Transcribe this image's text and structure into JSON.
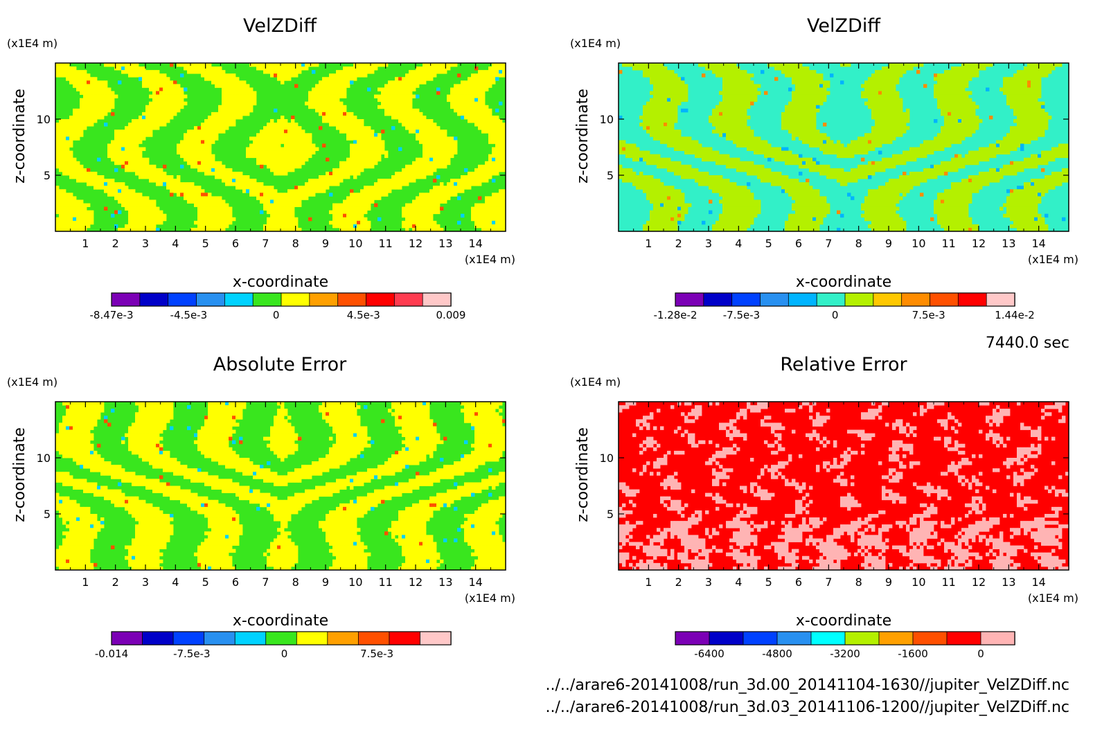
{
  "time_label": "7440.0 sec",
  "files": [
    "../../arare6-20141008/run_3d.00_20141104-1630//jupiter_VelZDiff.nc",
    "../../arare6-20141008/run_3d.03_20141106-1200//jupiter_VelZDiff.nc"
  ],
  "chart_data": [
    {
      "type": "heatmap",
      "title": "VelZDiff",
      "xlabel": "x-coordinate",
      "ylabel": "z-coordinate",
      "x_unit": "(x1E4 m)",
      "y_unit": "(x1E4 m)",
      "xlim": [
        0,
        15
      ],
      "ylim": [
        0,
        15
      ],
      "x_ticks": [
        1,
        2,
        3,
        4,
        5,
        6,
        7,
        8,
        9,
        10,
        11,
        12,
        13,
        14
      ],
      "y_ticks": [
        5,
        10
      ],
      "dominant_levels": [
        5,
        6
      ],
      "colorbar": {
        "colors": [
          "#7b00b5",
          "#0000c8",
          "#0041ff",
          "#2890f0",
          "#00d2ff",
          "#39e61e",
          "#ffff00",
          "#ffa000",
          "#ff5000",
          "#ff0000",
          "#ff3c50",
          "#ffc8c8"
        ],
        "labels": [
          "-8.47e-3",
          "-4.5e-3",
          "0",
          "4.5e-3",
          "0.009"
        ],
        "range": [
          -0.00847,
          0.009
        ],
        "label_values": [
          -0.00847,
          -0.0045,
          0,
          0.0045,
          0.009
        ]
      }
    },
    {
      "type": "heatmap",
      "title": "VelZDiff",
      "xlabel": "x-coordinate",
      "ylabel": "z-coordinate",
      "x_unit": "(x1E4 m)",
      "y_unit": "(x1E4 m)",
      "xlim": [
        0,
        15
      ],
      "ylim": [
        0,
        15
      ],
      "x_ticks": [
        1,
        2,
        3,
        4,
        5,
        6,
        7,
        8,
        9,
        10,
        11,
        12,
        13,
        14
      ],
      "y_ticks": [
        5,
        10
      ],
      "dominant_levels": [
        5,
        6
      ],
      "colorbar": {
        "colors": [
          "#7b00b5",
          "#0000c8",
          "#0041ff",
          "#2890f0",
          "#00b4ff",
          "#32f0c8",
          "#b4f000",
          "#ffc800",
          "#ff8c00",
          "#ff5000",
          "#ff0000",
          "#ffc8c8"
        ],
        "labels": [
          "-1.28e-2",
          "-7.5e-3",
          "0",
          "7.5e-3",
          "1.44e-2"
        ],
        "range": [
          -0.0128,
          0.0144
        ],
        "label_values": [
          -0.0128,
          -0.0075,
          0,
          0.0075,
          0.0144
        ]
      }
    },
    {
      "type": "heatmap",
      "title": "Absolute Error",
      "xlabel": "x-coordinate",
      "ylabel": "z-coordinate",
      "x_unit": "(x1E4 m)",
      "y_unit": "(x1E4 m)",
      "xlim": [
        0,
        15
      ],
      "ylim": [
        0,
        15
      ],
      "x_ticks": [
        1,
        2,
        3,
        4,
        5,
        6,
        7,
        8,
        9,
        10,
        11,
        12,
        13,
        14
      ],
      "y_ticks": [
        5,
        10
      ],
      "dominant_levels": [
        5,
        6
      ],
      "colorbar": {
        "colors": [
          "#7b00b5",
          "#0000c8",
          "#0041ff",
          "#2890f0",
          "#00d2ff",
          "#39e61e",
          "#ffff00",
          "#ffa000",
          "#ff5000",
          "#ff0000",
          "#ffc8c8"
        ],
        "labels": [
          "-0.014",
          "-7.5e-3",
          "0",
          "7.5e-3"
        ],
        "range": [
          -0.014,
          0.0135
        ],
        "label_values": [
          -0.014,
          -0.0075,
          0,
          0.0075
        ]
      }
    },
    {
      "type": "heatmap",
      "title": "Relative Error",
      "xlabel": "x-coordinate",
      "ylabel": "z-coordinate",
      "x_unit": "(x1E4 m)",
      "y_unit": "(x1E4 m)",
      "xlim": [
        0,
        15
      ],
      "ylim": [
        0,
        15
      ],
      "x_ticks": [
        1,
        2,
        3,
        4,
        5,
        6,
        7,
        8,
        9,
        10,
        11,
        12,
        13,
        14
      ],
      "y_ticks": [
        5,
        10
      ],
      "dominant_levels": [
        8,
        9
      ],
      "colorbar": {
        "colors": [
          "#7b00b5",
          "#0000c8",
          "#0041ff",
          "#2890f0",
          "#00ffff",
          "#b4f000",
          "#ffa000",
          "#ff5000",
          "#ff0000",
          "#ffb4b4"
        ],
        "labels": [
          "-6400",
          "-4800",
          "-3200",
          "-1600",
          "0"
        ],
        "range": [
          -7200,
          800
        ],
        "label_values": [
          -6400,
          -4800,
          -3200,
          -1600,
          0
        ]
      }
    }
  ]
}
